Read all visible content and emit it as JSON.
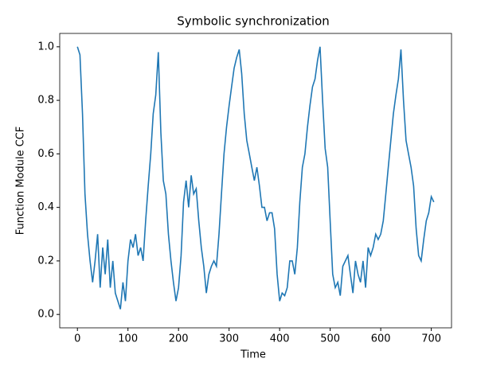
{
  "chart_data": {
    "type": "line",
    "title": "Symbolic synchronization",
    "x_label": "Time",
    "y_label": "Function Module CCF",
    "x": [
      0,
      5,
      10,
      15,
      20,
      25,
      30,
      35,
      40,
      45,
      50,
      55,
      60,
      65,
      70,
      75,
      80,
      85,
      90,
      95,
      100,
      105,
      110,
      115,
      120,
      125,
      130,
      135,
      140,
      145,
      150,
      155,
      160,
      165,
      170,
      175,
      180,
      185,
      190,
      195,
      200,
      205,
      210,
      215,
      220,
      225,
      230,
      235,
      240,
      245,
      250,
      255,
      260,
      265,
      270,
      275,
      280,
      285,
      290,
      295,
      300,
      305,
      310,
      315,
      320,
      325,
      330,
      335,
      340,
      345,
      350,
      355,
      360,
      365,
      370,
      375,
      380,
      385,
      390,
      395,
      400,
      405,
      410,
      415,
      420,
      425,
      430,
      435,
      440,
      445,
      450,
      455,
      460,
      465,
      470,
      475,
      480,
      485,
      490,
      495,
      500,
      505,
      510,
      515,
      520,
      525,
      530,
      535,
      540,
      545,
      550,
      555,
      560,
      565,
      570,
      575,
      580,
      585,
      590,
      595,
      600,
      605,
      610,
      615,
      620,
      625,
      630,
      635,
      640,
      645,
      650,
      655,
      660,
      665,
      670,
      675,
      680,
      685,
      690,
      695,
      700,
      705
    ],
    "series": [
      {
        "name": "CCF",
        "color": "#1f77b4",
        "values": [
          1.0,
          0.97,
          0.75,
          0.45,
          0.3,
          0.2,
          0.12,
          0.2,
          0.3,
          0.1,
          0.25,
          0.15,
          0.28,
          0.1,
          0.2,
          0.08,
          0.05,
          0.02,
          0.12,
          0.05,
          0.2,
          0.28,
          0.25,
          0.3,
          0.22,
          0.25,
          0.2,
          0.35,
          0.48,
          0.6,
          0.75,
          0.82,
          0.98,
          0.68,
          0.5,
          0.45,
          0.3,
          0.2,
          0.12,
          0.05,
          0.1,
          0.22,
          0.42,
          0.5,
          0.4,
          0.52,
          0.45,
          0.47,
          0.35,
          0.25,
          0.18,
          0.08,
          0.15,
          0.18,
          0.2,
          0.18,
          0.3,
          0.45,
          0.6,
          0.7,
          0.78,
          0.85,
          0.92,
          0.96,
          0.99,
          0.9,
          0.75,
          0.65,
          0.6,
          0.55,
          0.5,
          0.55,
          0.48,
          0.4,
          0.4,
          0.35,
          0.38,
          0.38,
          0.32,
          0.15,
          0.05,
          0.08,
          0.07,
          0.1,
          0.2,
          0.2,
          0.15,
          0.25,
          0.42,
          0.55,
          0.6,
          0.7,
          0.78,
          0.85,
          0.88,
          0.95,
          1.0,
          0.8,
          0.62,
          0.55,
          0.35,
          0.15,
          0.1,
          0.12,
          0.07,
          0.18,
          0.2,
          0.22,
          0.15,
          0.08,
          0.2,
          0.15,
          0.12,
          0.2,
          0.1,
          0.25,
          0.22,
          0.25,
          0.3,
          0.28,
          0.3,
          0.35,
          0.45,
          0.55,
          0.65,
          0.75,
          0.82,
          0.88,
          0.99,
          0.8,
          0.65,
          0.6,
          0.55,
          0.48,
          0.32,
          0.22,
          0.2,
          0.28,
          0.35,
          0.38,
          0.44,
          0.42
        ]
      }
    ],
    "xlim": [
      -35,
      740
    ],
    "xticks": [
      0,
      100,
      200,
      300,
      400,
      500,
      600,
      700
    ],
    "ylim": [
      -0.05,
      1.05
    ],
    "yticks": [
      {
        "value": 0,
        "label": "0.0"
      },
      {
        "value": 0.2,
        "label": "0.2"
      },
      {
        "value": 0.4,
        "label": "0.4"
      },
      {
        "value": 0.6,
        "label": "0.6"
      },
      {
        "value": 0.8,
        "label": "0.8"
      },
      {
        "value": 1,
        "label": "1.0"
      }
    ]
  }
}
